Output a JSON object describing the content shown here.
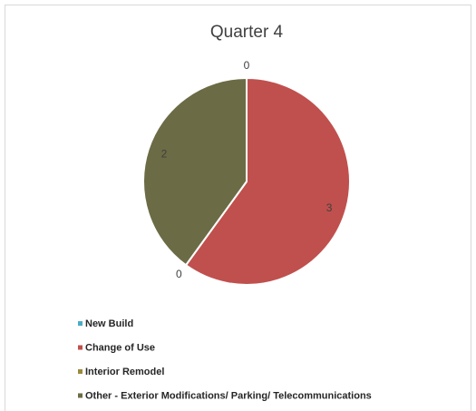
{
  "chart_data": {
    "type": "pie",
    "title": "Quarter 4",
    "categories": [
      "New Build",
      "Change of Use",
      "Interior Remodel",
      "Other - Exterior Modifications/ Parking/ Telecommunications"
    ],
    "values": [
      0,
      3,
      0,
      2
    ],
    "colors": [
      "#4bacc6",
      "#c0504d",
      "#9b8a3c",
      "#6b6b45"
    ],
    "legend": "bottom-left"
  }
}
